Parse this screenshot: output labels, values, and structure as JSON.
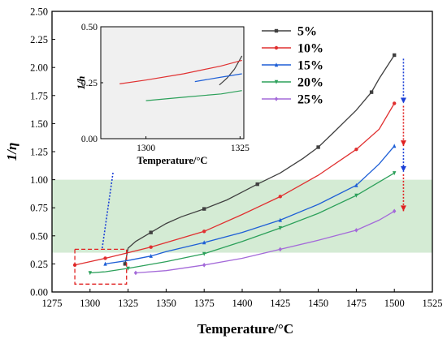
{
  "chart_data": {
    "type": "line",
    "xlabel": "Temperature/°C",
    "ylabel": "1/η",
    "xlim": [
      1275,
      1525
    ],
    "ylim": [
      0,
      2.5
    ],
    "xticks": [
      "1275",
      "1300",
      "1325",
      "1350",
      "1375",
      "1400",
      "1425",
      "1450",
      "1475",
      "1500",
      "1525"
    ],
    "yticks": [
      "0.00",
      "0.25",
      "0.50",
      "0.75",
      "1.00",
      "1.25",
      "1.50",
      "1.75",
      "2.00",
      "2.25",
      "2.50"
    ],
    "x_tick_values": [
      1275,
      1300,
      1325,
      1350,
      1375,
      1400,
      1425,
      1450,
      1475,
      1500,
      1525
    ],
    "y_tick_values": [
      0,
      0.25,
      0.5,
      0.75,
      1.0,
      1.25,
      1.5,
      1.75,
      2.0,
      2.25,
      2.5
    ],
    "grid": false,
    "legend_position": "top-right",
    "shaded_band": {
      "ymin": 0.35,
      "ymax": 1.0,
      "color": "#cfe9cf"
    },
    "highlight_box": {
      "xmin": 1290,
      "xmax": 1324,
      "ymin": 0.07,
      "ymax": 0.38,
      "color": "#e02020"
    },
    "series": [
      {
        "name": "5%",
        "color": "#404040",
        "marker": "square",
        "x": [
          1323,
          1325,
          1330,
          1340,
          1350,
          1360,
          1375,
          1390,
          1400,
          1410,
          1425,
          1440,
          1450,
          1460,
          1475,
          1485,
          1490,
          1500
        ],
        "y": [
          0.25,
          0.39,
          0.45,
          0.53,
          0.61,
          0.67,
          0.74,
          0.82,
          0.89,
          0.96,
          1.06,
          1.19,
          1.29,
          1.42,
          1.62,
          1.78,
          1.9,
          2.11
        ]
      },
      {
        "name": "10%",
        "color": "#e03030",
        "marker": "circle",
        "x": [
          1290,
          1300,
          1310,
          1325,
          1340,
          1350,
          1375,
          1400,
          1425,
          1450,
          1475,
          1490,
          1500
        ],
        "y": [
          0.24,
          0.27,
          0.3,
          0.35,
          0.4,
          0.44,
          0.54,
          0.69,
          0.85,
          1.04,
          1.27,
          1.45,
          1.68
        ]
      },
      {
        "name": "15%",
        "color": "#1e5fd6",
        "marker": "triangle",
        "x": [
          1310,
          1325,
          1340,
          1350,
          1375,
          1400,
          1425,
          1450,
          1475,
          1490,
          1500
        ],
        "y": [
          0.25,
          0.28,
          0.32,
          0.36,
          0.44,
          0.53,
          0.64,
          0.78,
          0.95,
          1.14,
          1.3
        ]
      },
      {
        "name": "20%",
        "color": "#2ca05a",
        "marker": "triangle-down",
        "x": [
          1300,
          1310,
          1325,
          1350,
          1375,
          1400,
          1425,
          1450,
          1475,
          1500
        ],
        "y": [
          0.17,
          0.18,
          0.21,
          0.27,
          0.34,
          0.45,
          0.57,
          0.7,
          0.86,
          1.06
        ]
      },
      {
        "name": "25%",
        "color": "#a46ad9",
        "marker": "diamond",
        "x": [
          1330,
          1350,
          1375,
          1400,
          1425,
          1450,
          1475,
          1490,
          1500
        ],
        "y": [
          0.17,
          0.19,
          0.24,
          0.3,
          0.38,
          0.46,
          0.55,
          0.64,
          0.72
        ]
      }
    ],
    "inset": {
      "xlabel": "Temperature/°C",
      "ylabel": "1/h",
      "xlim": [
        1288,
        1326
      ],
      "ylim": [
        0,
        0.5
      ],
      "xticks": [
        "1300",
        "1325"
      ],
      "x_tick_values": [
        1300,
        1325
      ],
      "yticks": [
        "0.00",
        "0.25",
        "0.50"
      ],
      "y_tick_values": [
        0,
        0.25,
        0.5
      ],
      "background": "#f0f0f0",
      "series": [
        {
          "name": "5%",
          "color": "#404040",
          "x": [
            1319.5,
            1321.5,
            1323.5,
            1325.5
          ],
          "y": [
            0.24,
            0.27,
            0.31,
            0.37
          ]
        },
        {
          "name": "10%",
          "color": "#e03030",
          "x": [
            1293,
            1300,
            1310,
            1320,
            1325.5
          ],
          "y": [
            0.245,
            0.262,
            0.29,
            0.325,
            0.35
          ]
        },
        {
          "name": "15%",
          "color": "#1e5fd6",
          "x": [
            1313,
            1320,
            1325.5
          ],
          "y": [
            0.255,
            0.275,
            0.29
          ]
        },
        {
          "name": "20%",
          "color": "#2ca05a",
          "x": [
            1300,
            1310,
            1320,
            1325.5
          ],
          "y": [
            0.17,
            0.185,
            0.2,
            0.215
          ]
        }
      ]
    },
    "annotations": [
      {
        "kind": "dotted-arrow",
        "color": "#1a3fd6",
        "from": [
          1308,
          0.39
        ],
        "to": [
          1329,
          2.38
        ]
      },
      {
        "kind": "down-arrow",
        "color": "#1a3fd6",
        "x": 1506,
        "from_y": 2.1,
        "to_y": 1.68
      },
      {
        "kind": "down-arrow",
        "color": "#e02020",
        "x": 1506,
        "from_y": 1.68,
        "to_y": 1.3
      },
      {
        "kind": "down-arrow",
        "color": "#1a3fd6",
        "x": 1506,
        "from_y": 1.3,
        "to_y": 1.07
      },
      {
        "kind": "down-arrow",
        "color": "#e02020",
        "x": 1506,
        "from_y": 1.07,
        "to_y": 0.72
      }
    ]
  }
}
